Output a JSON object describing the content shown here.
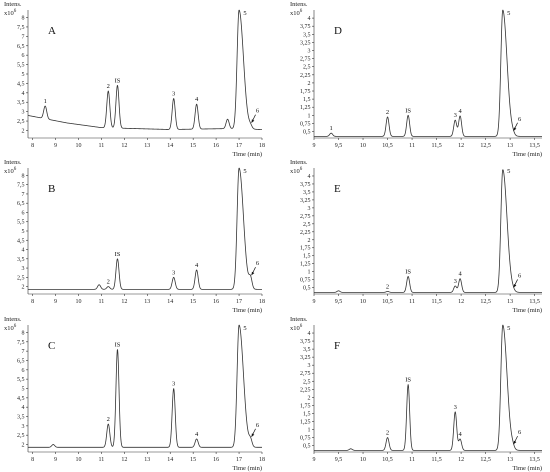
{
  "chart_data": [
    {
      "type": "line",
      "panel": "A",
      "ylabel": "Intens.",
      "y_multiplier": "x10",
      "y_exponent": "6",
      "xlabel": "Time (min)",
      "xlim": [
        7.8,
        18.0
      ],
      "ylim": [
        1.6,
        8.4
      ],
      "x_ticks": [
        "8",
        "9",
        "10",
        "11",
        "12",
        "13",
        "14",
        "15",
        "16",
        "17",
        "18"
      ],
      "y_ticks": [
        "2",
        "2,5",
        "3",
        "3,5",
        "4",
        "4,5",
        "5",
        "5,5",
        "6",
        "6,5",
        "7",
        "7,5",
        "8"
      ],
      "baseline": [
        [
          7.8,
          2.8
        ],
        [
          9.5,
          2.4
        ],
        [
          11.0,
          2.15
        ],
        [
          14.0,
          2.05
        ],
        [
          16.5,
          2.1
        ],
        [
          18.0,
          2.05
        ]
      ],
      "peaks": [
        {
          "label": "1",
          "x": 8.55,
          "y": 3.3
        },
        {
          "label": "2",
          "x": 11.3,
          "y": 4.1
        },
        {
          "label": "IS",
          "x": 11.7,
          "y": 4.4
        },
        {
          "label": "3",
          "x": 14.15,
          "y": 3.7
        },
        {
          "label": "4",
          "x": 15.15,
          "y": 3.4
        },
        {
          "label": "",
          "x": 16.5,
          "y": 2.6
        },
        {
          "label": "5",
          "x": 17.0,
          "y": 8.4
        },
        {
          "label": "6",
          "x": 17.5,
          "y": 2.2
        }
      ]
    },
    {
      "type": "line",
      "panel": "B",
      "ylabel": "Intens.",
      "y_multiplier": "x10",
      "y_exponent": "6",
      "xlabel": "Time (min)",
      "xlim": [
        7.8,
        18.0
      ],
      "ylim": [
        1.6,
        8.4
      ],
      "x_ticks": [
        "8",
        "9",
        "10",
        "11",
        "12",
        "13",
        "14",
        "15",
        "16",
        "17",
        "18"
      ],
      "y_ticks": [
        "2",
        "2,5",
        "3",
        "3,5",
        "4",
        "4,5",
        "5",
        "5,5",
        "6",
        "6,5",
        "7",
        "7,5",
        "8"
      ],
      "baseline": [
        [
          7.8,
          1.85
        ],
        [
          18.0,
          1.85
        ]
      ],
      "peaks": [
        {
          "label": "",
          "x": 10.9,
          "y": 2.1
        },
        {
          "label": "2",
          "x": 11.3,
          "y": 2.0
        },
        {
          "label": "IS",
          "x": 11.7,
          "y": 3.5
        },
        {
          "label": "3",
          "x": 14.15,
          "y": 2.5
        },
        {
          "label": "4",
          "x": 15.15,
          "y": 2.9
        },
        {
          "label": "5",
          "x": 17.0,
          "y": 8.4
        },
        {
          "label": "6",
          "x": 17.5,
          "y": 2.4
        }
      ]
    },
    {
      "type": "line",
      "panel": "C",
      "ylabel": "Intens.",
      "y_multiplier": "x10",
      "y_exponent": "6",
      "xlabel": "Time (min)",
      "xlim": [
        7.8,
        18.0
      ],
      "ylim": [
        1.6,
        8.4
      ],
      "x_ticks": [
        "8",
        "9",
        "10",
        "11",
        "12",
        "13",
        "14",
        "15",
        "16",
        "17",
        "18"
      ],
      "y_ticks": [
        "2",
        "2,5",
        "3",
        "3,5",
        "4",
        "4,5",
        "5",
        "5,5",
        "6",
        "6,5",
        "7",
        "7,5",
        "8"
      ],
      "baseline": [
        [
          7.8,
          1.85
        ],
        [
          18.0,
          1.85
        ]
      ],
      "peaks": [
        {
          "label": "",
          "x": 8.9,
          "y": 2.0
        },
        {
          "label": "2",
          "x": 11.3,
          "y": 3.1
        },
        {
          "label": "IS",
          "x": 11.7,
          "y": 7.1
        },
        {
          "label": "3",
          "x": 14.15,
          "y": 5.0
        },
        {
          "label": "4",
          "x": 15.15,
          "y": 2.3
        },
        {
          "label": "5",
          "x": 17.0,
          "y": 8.4
        },
        {
          "label": "6",
          "x": 17.5,
          "y": 2.2
        }
      ]
    },
    {
      "type": "line",
      "panel": "D",
      "ylabel": "Intens.",
      "y_multiplier": "x10",
      "y_exponent": "6",
      "xlabel": "Time (min)",
      "xlim": [
        9.0,
        13.65
      ],
      "ylim": [
        0.3,
        4.25
      ],
      "x_ticks": [
        "9",
        "9,5",
        "10",
        "10,5",
        "11",
        "11,5",
        "12",
        "12,5",
        "13",
        "13,5"
      ],
      "y_ticks": [
        "0,5",
        "0,75",
        "1",
        "1,25",
        "1,5",
        "1,75",
        "2",
        "2,25",
        "2,5",
        "2,75",
        "3",
        "3,25",
        "3,5",
        "3,75",
        "4"
      ],
      "baseline": [
        [
          9.0,
          0.35
        ],
        [
          13.65,
          0.35
        ]
      ],
      "peaks": [
        {
          "label": "1",
          "x": 9.35,
          "y": 0.45
        },
        {
          "label": "2",
          "x": 10.5,
          "y": 0.95
        },
        {
          "label": "IS",
          "x": 10.92,
          "y": 1.0
        },
        {
          "label": "3",
          "x": 11.88,
          "y": 0.85
        },
        {
          "label": "4",
          "x": 11.98,
          "y": 0.98
        },
        {
          "label": "5",
          "x": 12.85,
          "y": 4.25
        },
        {
          "label": "6",
          "x": 13.05,
          "y": 0.4
        }
      ]
    },
    {
      "type": "line",
      "panel": "E",
      "ylabel": "Intens.",
      "y_multiplier": "x10",
      "y_exponent": "6",
      "xlabel": "Time (min)",
      "xlim": [
        9.0,
        13.65
      ],
      "ylim": [
        0.3,
        4.25
      ],
      "x_ticks": [
        "9",
        "9,5",
        "10",
        "10,5",
        "11",
        "11,5",
        "12",
        "12,5",
        "13",
        "13,5"
      ],
      "y_ticks": [
        "0,5",
        "0,75",
        "1",
        "1,25",
        "1,5",
        "1,75",
        "2",
        "2,25",
        "2,5",
        "2,75",
        "3",
        "3,25",
        "3,5",
        "3,75",
        "4"
      ],
      "baseline": [
        [
          9.0,
          0.35
        ],
        [
          13.65,
          0.35
        ]
      ],
      "peaks": [
        {
          "label": "",
          "x": 9.5,
          "y": 0.4
        },
        {
          "label": "2",
          "x": 10.5,
          "y": 0.38
        },
        {
          "label": "IS",
          "x": 10.92,
          "y": 0.85
        },
        {
          "label": "3",
          "x": 11.88,
          "y": 0.55
        },
        {
          "label": "4",
          "x": 11.98,
          "y": 0.78
        },
        {
          "label": "5",
          "x": 12.85,
          "y": 4.2
        },
        {
          "label": "6",
          "x": 13.05,
          "y": 0.38
        }
      ]
    },
    {
      "type": "line",
      "panel": "F",
      "ylabel": "Intens.",
      "y_multiplier": "x10",
      "y_exponent": "6",
      "xlabel": "Time (min)",
      "xlim": [
        9.0,
        13.65
      ],
      "ylim": [
        0.3,
        4.25
      ],
      "x_ticks": [
        "9",
        "9,5",
        "10",
        "10,5",
        "11",
        "11,5",
        "12",
        "12,5",
        "13",
        "13,5"
      ],
      "y_ticks": [
        "0,5",
        "0,75",
        "1",
        "1,25",
        "1,5",
        "1,75",
        "2",
        "2,25",
        "2,5",
        "2,75",
        "3",
        "3,25",
        "3,5",
        "3,75",
        "4"
      ],
      "baseline": [
        [
          9.0,
          0.35
        ],
        [
          13.65,
          0.35
        ]
      ],
      "peaks": [
        {
          "label": "",
          "x": 9.75,
          "y": 0.4
        },
        {
          "label": "2",
          "x": 10.5,
          "y": 0.75
        },
        {
          "label": "IS",
          "x": 10.92,
          "y": 2.4
        },
        {
          "label": "3",
          "x": 11.88,
          "y": 1.55
        },
        {
          "label": "4",
          "x": 11.98,
          "y": 0.7
        },
        {
          "label": "5",
          "x": 12.85,
          "y": 4.25
        },
        {
          "label": "6",
          "x": 13.05,
          "y": 0.42
        }
      ]
    }
  ]
}
